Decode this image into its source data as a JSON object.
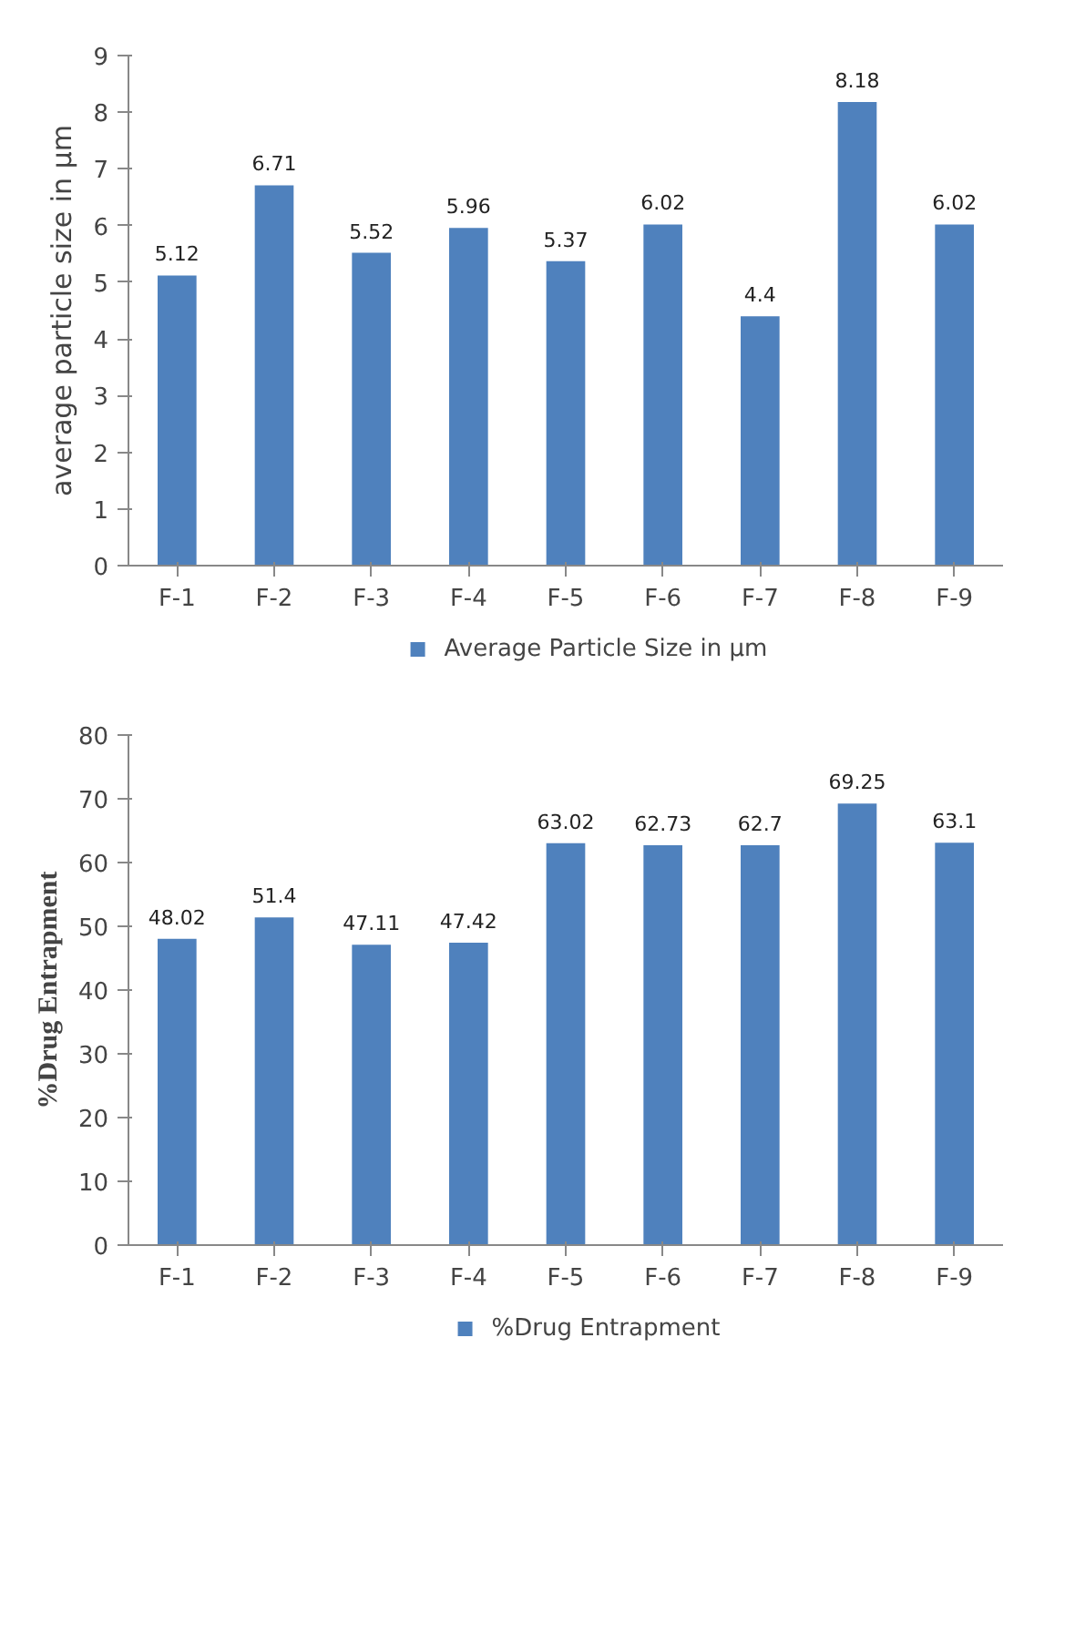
{
  "chart_data": [
    {
      "type": "bar",
      "ylabel": "average particle size in µm",
      "categories": [
        "F-1",
        "F-2",
        "F-3",
        "F-4",
        "F-5",
        "F-6",
        "F-7",
        "F-8",
        "F-9"
      ],
      "series": [
        {
          "name": "Average Particle Size in µm",
          "color": "#4f81bd",
          "values": [
            5.12,
            6.71,
            5.52,
            5.96,
            5.37,
            6.02,
            4.4,
            8.18,
            6.02
          ]
        }
      ],
      "ylim": [
        0,
        9
      ],
      "yticks": [
        0,
        1,
        2,
        3,
        4,
        5,
        6,
        7,
        8,
        9
      ],
      "grid": false,
      "legend": "bottom",
      "data_labels": true
    },
    {
      "type": "bar",
      "ylabel": "%Drug Entrapment",
      "categories": [
        "F-1",
        "F-2",
        "F-3",
        "F-4",
        "F-5",
        "F-6",
        "F-7",
        "F-8",
        "F-9"
      ],
      "series": [
        {
          "name": "%Drug Entrapment",
          "color": "#4f81bd",
          "values": [
            48.02,
            51.4,
            47.11,
            47.42,
            63.02,
            62.73,
            62.7,
            69.25,
            63.1
          ]
        }
      ],
      "ylim": [
        0,
        80
      ],
      "yticks": [
        0,
        10,
        20,
        30,
        40,
        50,
        60,
        70,
        80
      ],
      "grid": false,
      "legend": "bottom",
      "data_labels": true
    }
  ]
}
